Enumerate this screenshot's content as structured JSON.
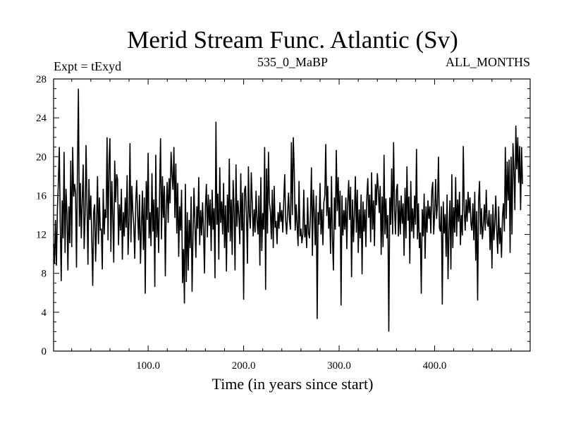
{
  "chart_data": {
    "type": "line",
    "title": "Merid Stream Func. Atlantic (Sv)",
    "subtitle_left": "Expt = tExyd",
    "subtitle_center": "535_0_MaBP",
    "subtitle_right": "ALL_MONTHS",
    "xlabel": "Time (in years since start)",
    "ylabel": "",
    "xlim": [
      1,
      500
    ],
    "ylim": [
      0,
      28
    ],
    "x_ticks": [
      100,
      200,
      300,
      400
    ],
    "x_tick_labels": [
      "100.0",
      "200.0",
      "300.0",
      "400.0"
    ],
    "y_ticks": [
      0,
      4,
      8,
      12,
      16,
      20,
      24,
      28
    ],
    "y_tick_labels": [
      "0",
      "4",
      "8",
      "12",
      "16",
      "20",
      "24",
      "28"
    ],
    "grid": false,
    "series": [
      {
        "x_start": 1,
        "x_step": 1,
        "y": [
          11.0,
          9.0,
          13.5,
          8.8,
          14.6,
          17.3,
          21.0,
          13.2,
          7.2,
          15.5,
          11.6,
          20.5,
          10.1,
          16.7,
          14.2,
          8.3,
          14.9,
          11.1,
          19.6,
          10.7,
          21.0,
          15.9,
          17.2,
          16.3,
          8.6,
          18.9,
          27.0,
          12.8,
          17.3,
          11.6,
          15.5,
          19.2,
          10.5,
          14.0,
          21.2,
          15.0,
          8.9,
          17.7,
          13.5,
          16.0,
          11.5,
          6.7,
          14.4,
          15.1,
          9.2,
          13.0,
          18.0,
          11.0,
          15.8,
          12.4,
          12.6,
          8.4,
          16.7,
          12.0,
          14.6,
          13.7,
          22.0,
          11.4,
          19.3,
          21.9,
          10.2,
          17.5,
          13.9,
          9.1,
          19.6,
          15.3,
          18.2,
          17.7,
          10.9,
          15.1,
          12.4,
          16.7,
          9.4,
          14.3,
          11.8,
          15.8,
          12.7,
          18.1,
          9.9,
          13.4,
          21.4,
          11.2,
          17.0,
          14.4,
          12.8,
          9.5,
          15.2,
          17.6,
          14.0,
          11.4,
          16.1,
          9.0,
          12.8,
          16.5,
          10.4,
          15.8,
          5.9,
          17.5,
          13.5,
          20.4,
          11.6,
          14.3,
          10.8,
          18.3,
          12.3,
          15.6,
          6.6,
          20.2,
          11.7,
          14.8,
          10.1,
          16.4,
          21.9,
          11.5,
          18.0,
          13.7,
          17.0,
          7.7,
          15.0,
          17.4,
          13.2,
          17.8,
          15.2,
          20.5,
          18.2,
          16.6,
          21.0,
          13.7,
          19.3,
          12.1,
          17.3,
          9.7,
          14.9,
          12.4,
          16.6,
          7.0,
          10.5,
          4.9,
          17.2,
          7.1,
          14.3,
          8.3,
          13.5,
          10.6,
          15.9,
          6.1,
          11.8,
          16.8,
          13.0,
          9.6,
          14.9,
          12.6,
          17.9,
          10.9,
          14.5,
          11.9,
          15.3,
          12.4,
          8.0,
          14.9,
          17.2,
          11.7,
          16.1,
          12.9,
          15.6,
          10.3,
          16.6,
          12.5,
          14.7,
          7.5,
          23.6,
          13.0,
          16.2,
          9.4,
          18.9,
          13.2,
          15.4,
          12.0,
          17.3,
          10.6,
          15.0,
          8.2,
          16.1,
          12.2,
          19.8,
          11.3,
          15.6,
          9.9,
          17.6,
          14.5,
          8.3,
          19.2,
          12.8,
          15.5,
          14.0,
          11.0,
          18.3,
          12.4,
          16.3,
          5.3,
          16.6,
          17.0,
          13.9,
          9.0,
          19.0,
          14.1,
          12.6,
          18.4,
          15.3,
          11.8,
          14.6,
          12.2,
          16.5,
          13.4,
          12.0,
          16.0,
          8.8,
          17.9,
          10.3,
          14.2,
          12.5,
          21.0,
          6.3,
          18.8,
          12.1,
          20.5,
          15.3,
          14.4,
          11.5,
          16.6,
          10.6,
          17.0,
          12.7,
          13.4,
          11.0,
          14.3,
          12.6,
          15.3,
          13.3,
          14.5,
          12.2,
          15.4,
          18.2,
          13.5,
          12.0,
          14.1,
          16.3,
          13.5,
          12.5,
          21.5,
          14.0,
          22.0,
          18.6,
          12.4,
          15.1,
          13.0,
          10.8,
          17.5,
          11.8,
          12.6,
          11.1,
          12.1,
          16.6,
          11.7,
          13.0,
          10.6,
          15.8,
          12.1,
          11.6,
          14.2,
          18.9,
          9.8,
          16.6,
          14.3,
          10.9,
          16.0,
          3.3,
          14.3,
          13.0,
          17.3,
          12.0,
          14.6,
          10.9,
          15.3,
          16.0,
          21.3,
          13.9,
          17.0,
          12.6,
          14.8,
          10.0,
          18.0,
          11.6,
          8.3,
          15.8,
          12.5,
          20.7,
          14.4,
          17.9,
          12.8,
          16.5,
          4.7,
          16.0,
          11.9,
          14.5,
          12.5,
          15.8,
          10.5,
          15.3,
          17.6,
          13.5,
          16.9,
          7.6,
          15.6,
          11.2,
          14.2,
          18.0,
          12.2,
          16.6,
          10.1,
          14.6,
          11.6,
          16.1,
          7.9,
          15.4,
          12.3,
          14.6,
          10.7,
          15.8,
          17.8,
          13.7,
          16.1,
          11.2,
          18.4,
          12.5,
          15.5,
          10.8,
          17.2,
          15.0,
          18.3,
          16.6,
          14.2,
          17.0,
          9.9,
          15.9,
          10.7,
          20.2,
          12.0,
          15.7,
          11.6,
          14.0,
          2.0,
          15.8,
          13.0,
          18.8,
          12.0,
          21.5,
          14.6,
          12.0,
          16.6,
          17.2,
          11.8,
          15.5,
          12.0,
          16.0,
          13.1,
          15.2,
          9.8,
          16.8,
          11.6,
          19.0,
          13.4,
          15.9,
          9.0,
          17.5,
          12.3,
          14.7,
          11.6,
          16.0,
          13.0,
          20.8,
          11.5,
          15.2,
          10.6,
          12.2,
          5.9,
          14.6,
          11.8,
          16.2,
          9.5,
          14.9,
          12.2,
          15.5,
          13.6,
          14.9,
          12.1,
          16.5,
          17.4,
          12.0,
          14.2,
          17.7,
          13.6,
          15.2,
          20.0,
          12.7,
          12.3,
          14.9,
          4.8,
          15.4,
          12.1,
          14.1,
          9.7,
          16.1,
          7.4,
          12.6,
          15.5,
          8.4,
          18.2,
          10.6,
          14.8,
          12.2,
          17.9,
          11.8,
          15.6,
          13.3,
          16.4,
          10.9,
          14.0,
          11.9,
          21.1,
          14.4,
          12.4,
          15.6,
          13.3,
          16.4,
          14.2,
          15.8,
          13.1,
          12.4,
          15.2,
          11.4,
          16.4,
          9.3,
          14.4,
          5.2,
          15.5,
          17.5,
          12.0,
          14.7,
          11.5,
          12.9,
          15.1,
          12.4,
          16.6,
          13.2,
          12.8,
          14.5,
          10.4,
          14.1,
          8.5,
          15.1,
          11.4,
          13.1,
          16.0,
          12.4,
          10.0,
          14.9,
          11.0,
          12.7,
          9.6,
          13.8,
          15.2,
          12.3,
          21.0,
          13.6,
          19.5,
          15.5,
          19.7,
          10.1,
          20.0,
          12.0,
          21.4,
          18.6,
          14.5,
          23.2,
          18.7,
          22.0,
          17.3,
          21.1,
          14.5,
          21.0,
          17.2
        ]
      }
    ]
  }
}
